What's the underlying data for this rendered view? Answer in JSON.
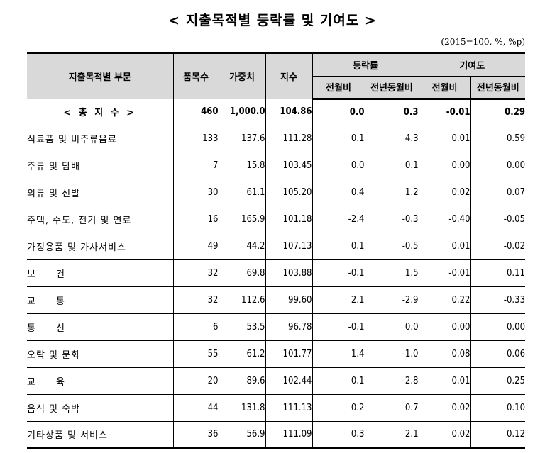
{
  "title": "< 지출목적별 등락률 및 기여도 >",
  "unit_note": "(2015=100, %, %p)",
  "headers": {
    "category": "지출목적별 부문",
    "items": "품목수",
    "weight": "가중치",
    "index": "지수",
    "rate": "등락률",
    "contribution": "기여도",
    "mom": "전월비",
    "yoy": "전년동월비"
  },
  "total": {
    "label": "< 총 지 수 >",
    "items": "460",
    "weight": "1,000.0",
    "index": "104.86",
    "rate_mom": "0.0",
    "rate_yoy": "0.3",
    "contrib_mom": "-0.01",
    "contrib_yoy": "0.29"
  },
  "rows": [
    {
      "label": "식료품 및 비주류음료",
      "items": "133",
      "weight": "137.6",
      "index": "111.28",
      "rate_mom": "0.1",
      "rate_yoy": "4.3",
      "contrib_mom": "0.01",
      "contrib_yoy": "0.59"
    },
    {
      "label": "주류 및 담배",
      "items": "7",
      "weight": "15.8",
      "index": "103.45",
      "rate_mom": "0.0",
      "rate_yoy": "0.1",
      "contrib_mom": "0.00",
      "contrib_yoy": "0.00"
    },
    {
      "label": "의류 및 신발",
      "items": "30",
      "weight": "61.1",
      "index": "105.20",
      "rate_mom": "0.4",
      "rate_yoy": "1.2",
      "contrib_mom": "0.02",
      "contrib_yoy": "0.07"
    },
    {
      "label": "주택, 수도, 전기 및 연료",
      "items": "16",
      "weight": "165.9",
      "index": "101.18",
      "rate_mom": "-2.4",
      "rate_yoy": "-0.3",
      "contrib_mom": "-0.40",
      "contrib_yoy": "-0.05"
    },
    {
      "label": "가정용품 및 가사서비스",
      "items": "49",
      "weight": "44.2",
      "index": "107.13",
      "rate_mom": "0.1",
      "rate_yoy": "-0.5",
      "contrib_mom": "0.01",
      "contrib_yoy": "-0.02"
    },
    {
      "label": "보　　건",
      "items": "32",
      "weight": "69.8",
      "index": "103.88",
      "rate_mom": "-0.1",
      "rate_yoy": "1.5",
      "contrib_mom": "-0.01",
      "contrib_yoy": "0.11"
    },
    {
      "label": "교　　통",
      "items": "32",
      "weight": "112.6",
      "index": "99.60",
      "rate_mom": "2.1",
      "rate_yoy": "-2.9",
      "contrib_mom": "0.22",
      "contrib_yoy": "-0.33"
    },
    {
      "label": "통　　신",
      "items": "6",
      "weight": "53.5",
      "index": "96.78",
      "rate_mom": "-0.1",
      "rate_yoy": "0.0",
      "contrib_mom": "0.00",
      "contrib_yoy": "0.00"
    },
    {
      "label": "오락 및 문화",
      "items": "55",
      "weight": "61.2",
      "index": "101.77",
      "rate_mom": "1.4",
      "rate_yoy": "-1.0",
      "contrib_mom": "0.08",
      "contrib_yoy": "-0.06"
    },
    {
      "label": "교　　육",
      "items": "20",
      "weight": "89.6",
      "index": "102.44",
      "rate_mom": "0.1",
      "rate_yoy": "-2.8",
      "contrib_mom": "0.01",
      "contrib_yoy": "-0.25"
    },
    {
      "label": "음식 및 숙박",
      "items": "44",
      "weight": "131.8",
      "index": "111.13",
      "rate_mom": "0.2",
      "rate_yoy": "0.7",
      "contrib_mom": "0.02",
      "contrib_yoy": "0.10"
    },
    {
      "label": "기타상품 및 서비스",
      "items": "36",
      "weight": "56.9",
      "index": "111.09",
      "rate_mom": "0.3",
      "rate_yoy": "2.1",
      "contrib_mom": "0.02",
      "contrib_yoy": "0.12"
    }
  ]
}
